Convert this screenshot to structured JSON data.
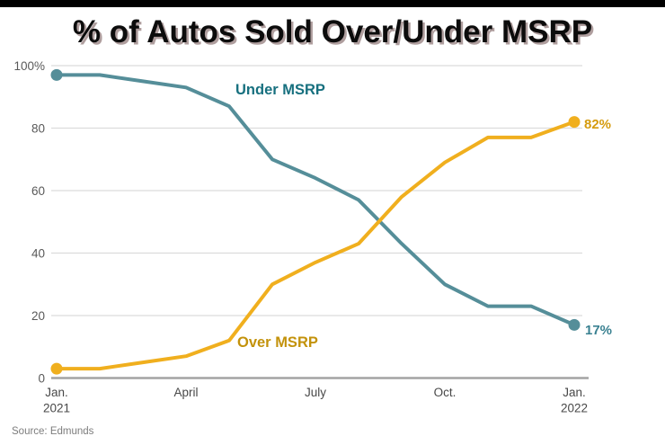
{
  "title": "% of Autos Sold Over/Under MSRP",
  "source": "Source: Edmunds",
  "colors": {
    "under_line": "#558E99",
    "under_label": "#17707F",
    "under_end_label": "#3A8191",
    "over_line": "#F0AF1E",
    "over_label": "#C3920B",
    "over_end_label": "#D59B0E",
    "grid": "#DCDCDC",
    "axis": "#A3A3A3",
    "top_bar": "#000000"
  },
  "chart_data": {
    "type": "line",
    "title": "% of Autos Sold Over/Under MSRP",
    "x": [
      "Jan. 2021",
      "Feb. 2021",
      "March 2021",
      "April 2021",
      "May 2021",
      "June 2021",
      "July 2021",
      "Aug. 2021",
      "Sept. 2021",
      "Oct. 2021",
      "Nov. 2021",
      "Dec. 2021",
      "Jan. 2022"
    ],
    "series": [
      {
        "name": "Under MSRP",
        "color": "#558E99",
        "values": [
          97,
          97,
          95,
          93,
          87,
          70,
          64,
          57,
          43,
          30,
          23,
          23,
          17
        ],
        "start_value_pct": 97,
        "end_value_pct": 17,
        "end_label": "17%"
      },
      {
        "name": "Over MSRP",
        "color": "#F0AF1E",
        "values": [
          3,
          3,
          5,
          7,
          12,
          30,
          37,
          43,
          58,
          69,
          77,
          77,
          82
        ],
        "start_value_pct": 3,
        "end_value_pct": 82,
        "end_label": "82%"
      }
    ],
    "ylim": [
      0,
      100
    ],
    "y_ticks": [
      {
        "value": 0,
        "label": "0"
      },
      {
        "value": 20,
        "label": "20"
      },
      {
        "value": 40,
        "label": "40"
      },
      {
        "value": 60,
        "label": "60"
      },
      {
        "value": 80,
        "label": "80"
      },
      {
        "value": 100,
        "label": "100%"
      }
    ],
    "x_ticks": [
      {
        "index": 0,
        "lines": [
          "Jan.",
          "2021"
        ]
      },
      {
        "index": 3,
        "lines": [
          "April"
        ]
      },
      {
        "index": 6,
        "lines": [
          "July"
        ]
      },
      {
        "index": 9,
        "lines": [
          "Oct."
        ]
      },
      {
        "index": 12,
        "lines": [
          "Jan.",
          "2022"
        ]
      }
    ],
    "grid": true,
    "legend_position": "inline-annotations"
  }
}
